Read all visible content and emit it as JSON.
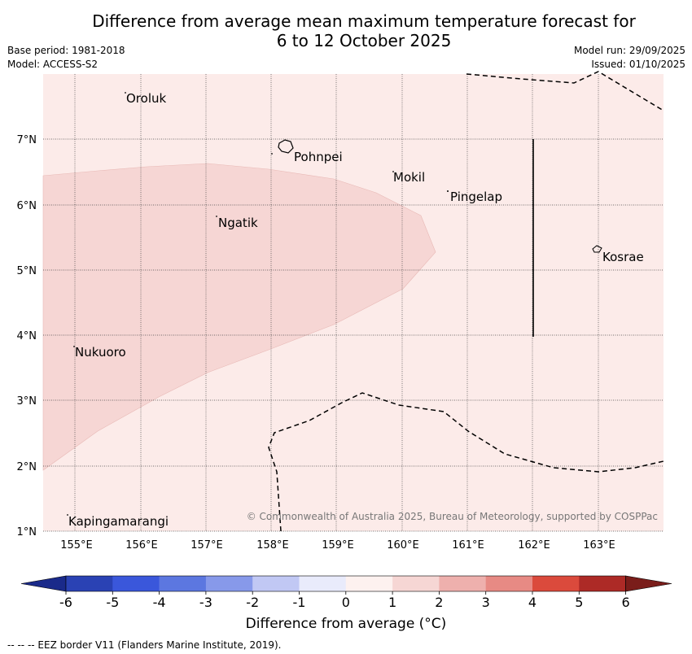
{
  "title_line1": "Difference from average mean maximum temperature forecast for",
  "title_line2": "6 to 12 October 2025",
  "base_period": "Base period: 1981-2018",
  "model": "Model: ACCESS-S2",
  "model_run": "Model run: 29/09/2025",
  "issued": "Issued: 01/10/2025",
  "copyright": "© Commonwealth of Australia 2025, Bureau of Meteorology, supported by COSPPac",
  "legend_note": "--  --  -- EEZ border V11 (Flanders Marine Institute, 2019).",
  "map": {
    "lat_labels": [
      "7°N",
      "6°N",
      "5°N",
      "4°N",
      "3°N",
      "2°N",
      "1°N"
    ],
    "lon_labels": [
      "155°E",
      "156°E",
      "157°E",
      "158°E",
      "159°E",
      "160°E",
      "161°E",
      "162°E",
      "163°E"
    ],
    "places": [
      "Oroluk",
      "Pohnpei",
      "Mokil",
      "Pingelap",
      "Ngatik",
      "Kosrae",
      "Nukuoro",
      "Kapingamarangi"
    ]
  },
  "colorbar": {
    "title": "Difference from average (°C)",
    "ticks": [
      "-6",
      "-5",
      "-4",
      "-3",
      "-2",
      "-1",
      "0",
      "1",
      "2",
      "3",
      "4",
      "5",
      "6"
    ],
    "colors": [
      "#1a2a8a",
      "#2a42b4",
      "#3a57db",
      "#5c77e0",
      "#8799ea",
      "#c1c8f4",
      "#e9ebfb",
      "#fdf1ef",
      "#f6d6d4",
      "#eeb0ad",
      "#e78a84",
      "#db4a3c",
      "#ad2a26",
      "#7a1d1a"
    ]
  }
}
